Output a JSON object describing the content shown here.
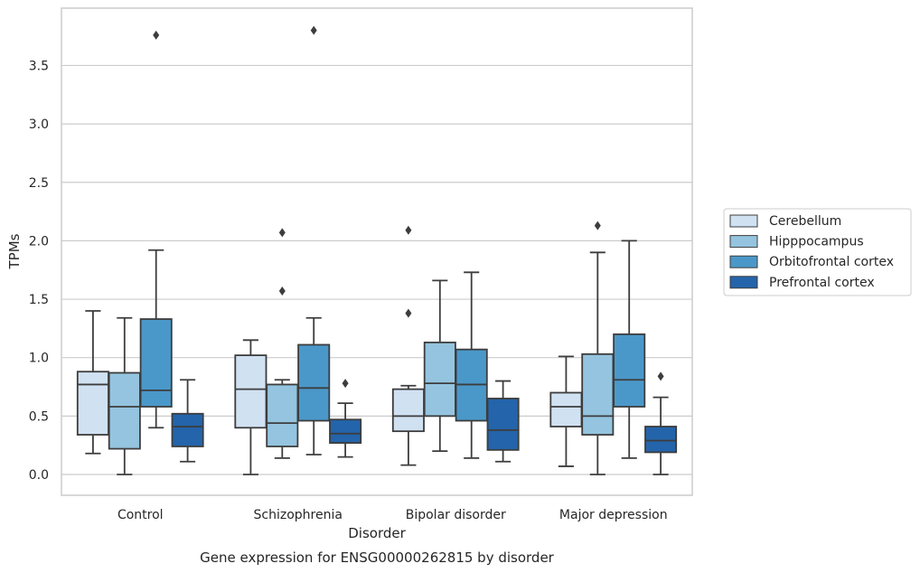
{
  "chart_data": {
    "type": "box",
    "xlabel": "Disorder",
    "ylabel": "TPMs",
    "caption": "Gene expression for ENSG00000262815 by disorder",
    "ylim": [
      -0.18,
      4.0
    ],
    "yticks": [
      "0.0",
      "0.5",
      "1.0",
      "1.5",
      "2.0",
      "2.5",
      "3.0",
      "3.5"
    ],
    "grid": "horizontal",
    "legend_position": "right",
    "categories": [
      "Control",
      "Schizophrenia",
      "Bipolar disorder",
      "Major depression"
    ],
    "series": [
      {
        "name": "Cerebellum",
        "color": "#d0e1f2",
        "boxes": [
          {
            "whislo": 0.18,
            "q1": 0.34,
            "med": 0.77,
            "q3": 0.88,
            "whishi": 1.4,
            "fliers": []
          },
          {
            "whislo": 0.0,
            "q1": 0.4,
            "med": 0.73,
            "q3": 1.02,
            "whishi": 1.15,
            "fliers": []
          },
          {
            "whislo": 0.08,
            "q1": 0.37,
            "med": 0.5,
            "q3": 0.73,
            "whishi": 0.76,
            "fliers": [
              1.38,
              2.09
            ]
          },
          {
            "whislo": 0.07,
            "q1": 0.41,
            "med": 0.58,
            "q3": 0.7,
            "whishi": 1.01,
            "fliers": []
          }
        ]
      },
      {
        "name": "Hipppocampus",
        "color": "#94c4df",
        "boxes": [
          {
            "whislo": 0.0,
            "q1": 0.22,
            "med": 0.58,
            "q3": 0.87,
            "whishi": 1.34,
            "fliers": []
          },
          {
            "whislo": 0.14,
            "q1": 0.24,
            "med": 0.44,
            "q3": 0.77,
            "whishi": 0.81,
            "fliers": [
              1.57,
              2.07
            ]
          },
          {
            "whislo": 0.2,
            "q1": 0.5,
            "med": 0.78,
            "q3": 1.13,
            "whishi": 1.66,
            "fliers": []
          },
          {
            "whislo": 0.0,
            "q1": 0.34,
            "med": 0.5,
            "q3": 1.03,
            "whishi": 1.9,
            "fliers": [
              2.13
            ]
          }
        ]
      },
      {
        "name": "Orbitofrontal cortex",
        "color": "#4a98c9",
        "boxes": [
          {
            "whislo": 0.4,
            "q1": 0.58,
            "med": 0.72,
            "q3": 1.33,
            "whishi": 1.92,
            "fliers": [
              3.76
            ]
          },
          {
            "whislo": 0.17,
            "q1": 0.46,
            "med": 0.74,
            "q3": 1.11,
            "whishi": 1.34,
            "fliers": [
              3.8
            ]
          },
          {
            "whislo": 0.14,
            "q1": 0.46,
            "med": 0.77,
            "q3": 1.07,
            "whishi": 1.73,
            "fliers": []
          },
          {
            "whislo": 0.14,
            "q1": 0.58,
            "med": 0.81,
            "q3": 1.2,
            "whishi": 2.0,
            "fliers": []
          }
        ]
      },
      {
        "name": "Prefrontal cortex",
        "color": "#2464aa",
        "boxes": [
          {
            "whislo": 0.11,
            "q1": 0.24,
            "med": 0.41,
            "q3": 0.52,
            "whishi": 0.81,
            "fliers": []
          },
          {
            "whislo": 0.15,
            "q1": 0.27,
            "med": 0.35,
            "q3": 0.47,
            "whishi": 0.61,
            "fliers": [
              0.78
            ]
          },
          {
            "whislo": 0.11,
            "q1": 0.21,
            "med": 0.38,
            "q3": 0.65,
            "whishi": 0.8,
            "fliers": []
          },
          {
            "whislo": 0.0,
            "q1": 0.19,
            "med": 0.29,
            "q3": 0.41,
            "whishi": 0.66,
            "fliers": [
              0.84
            ]
          }
        ]
      }
    ]
  }
}
